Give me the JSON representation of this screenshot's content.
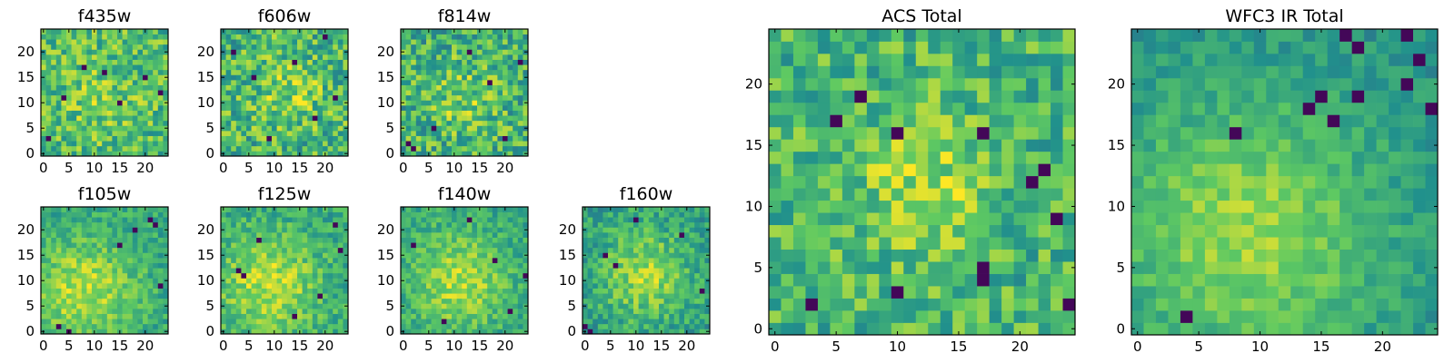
{
  "figure": {
    "colormap": "viridis",
    "colormap_stops": [
      "#440154",
      "#3b528b",
      "#21918c",
      "#5ec962",
      "#fde725"
    ]
  },
  "chart_data": [
    {
      "type": "heatmap",
      "title": "f435w",
      "grid_size": 25,
      "xlim": [
        -0.5,
        24.5
      ],
      "ylim": [
        -0.5,
        24.5
      ],
      "x_ticks": [
        0,
        5,
        10,
        15,
        20
      ],
      "y_ticks": [
        0,
        5,
        10,
        15,
        20
      ],
      "seed": 11,
      "center": [
        11,
        11
      ],
      "peak": 0.1,
      "sigma": 6,
      "base": 0.68,
      "noise": 0.22,
      "dark_cells": [
        [
          8,
          17
        ],
        [
          12,
          16
        ],
        [
          4,
          11
        ],
        [
          15,
          10
        ],
        [
          20,
          15
        ],
        [
          1,
          3
        ],
        [
          23,
          12
        ]
      ]
    },
    {
      "type": "heatmap",
      "title": "f606w",
      "grid_size": 25,
      "xlim": [
        -0.5,
        24.5
      ],
      "ylim": [
        -0.5,
        24.5
      ],
      "x_ticks": [
        0,
        5,
        10,
        15,
        20
      ],
      "y_ticks": [
        0,
        5,
        10,
        15,
        20
      ],
      "seed": 12,
      "center": [
        13,
        12
      ],
      "peak": 0.15,
      "sigma": 5,
      "base": 0.66,
      "noise": 0.24,
      "dark_cells": [
        [
          2,
          20
        ],
        [
          20,
          23
        ],
        [
          6,
          15
        ],
        [
          18,
          7
        ],
        [
          9,
          3
        ],
        [
          14,
          18
        ],
        [
          22,
          11
        ]
      ]
    },
    {
      "type": "heatmap",
      "title": "f814w",
      "grid_size": 25,
      "xlim": [
        -0.5,
        24.5
      ],
      "ylim": [
        -0.5,
        24.5
      ],
      "x_ticks": [
        0,
        5,
        10,
        15,
        20
      ],
      "y_ticks": [
        0,
        5,
        10,
        15,
        20
      ],
      "seed": 13,
      "center": [
        12,
        11
      ],
      "peak": 0.15,
      "sigma": 5,
      "base": 0.64,
      "noise": 0.24,
      "dark_cells": [
        [
          1,
          2
        ],
        [
          2,
          1
        ],
        [
          6,
          5
        ],
        [
          13,
          20
        ],
        [
          20,
          3
        ],
        [
          17,
          14
        ],
        [
          23,
          18
        ]
      ]
    },
    {
      "type": "heatmap",
      "title": "f105w",
      "grid_size": 25,
      "xlim": [
        -0.5,
        24.5
      ],
      "ylim": [
        -0.5,
        24.5
      ],
      "x_ticks": [
        0,
        5,
        10,
        15,
        20
      ],
      "y_ticks": [
        0,
        5,
        10,
        15,
        20
      ],
      "seed": 21,
      "center": [
        8,
        8
      ],
      "peak": 0.3,
      "sigma": 7,
      "base": 0.6,
      "noise": 0.14,
      "dark_cells": [
        [
          21,
          22
        ],
        [
          22,
          21
        ],
        [
          18,
          20
        ],
        [
          3,
          1
        ],
        [
          5,
          0
        ],
        [
          23,
          9
        ],
        [
          15,
          17
        ]
      ]
    },
    {
      "type": "heatmap",
      "title": "f125w",
      "grid_size": 25,
      "xlim": [
        -0.5,
        24.5
      ],
      "ylim": [
        -0.5,
        24.5
      ],
      "x_ticks": [
        0,
        5,
        10,
        15,
        20
      ],
      "y_ticks": [
        0,
        5,
        10,
        15,
        20
      ],
      "seed": 22,
      "center": [
        9,
        9
      ],
      "peak": 0.3,
      "sigma": 7,
      "base": 0.6,
      "noise": 0.15,
      "dark_cells": [
        [
          3,
          12
        ],
        [
          4,
          11
        ],
        [
          22,
          21
        ],
        [
          19,
          7
        ],
        [
          14,
          3
        ],
        [
          7,
          18
        ],
        [
          23,
          16
        ]
      ]
    },
    {
      "type": "heatmap",
      "title": "f140w",
      "grid_size": 25,
      "xlim": [
        -0.5,
        24.5
      ],
      "ylim": [
        -0.5,
        24.5
      ],
      "x_ticks": [
        0,
        5,
        10,
        15,
        20
      ],
      "y_ticks": [
        0,
        5,
        10,
        15,
        20
      ],
      "seed": 23,
      "center": [
        11,
        10
      ],
      "peak": 0.3,
      "sigma": 7,
      "base": 0.58,
      "noise": 0.14,
      "dark_cells": [
        [
          13,
          22
        ],
        [
          18,
          14
        ],
        [
          21,
          4
        ],
        [
          2,
          17
        ],
        [
          8,
          2
        ],
        [
          24,
          11
        ]
      ]
    },
    {
      "type": "heatmap",
      "title": "f160w",
      "grid_size": 25,
      "xlim": [
        -0.5,
        24.5
      ],
      "ylim": [
        -0.5,
        24.5
      ],
      "x_ticks": [
        0,
        5,
        10,
        15,
        20
      ],
      "y_ticks": [
        0,
        5,
        10,
        15,
        20
      ],
      "seed": 24,
      "center": [
        12,
        11
      ],
      "peak": 0.3,
      "sigma": 6,
      "base": 0.56,
      "noise": 0.16,
      "dark_cells": [
        [
          4,
          15
        ],
        [
          6,
          13
        ],
        [
          0,
          1
        ],
        [
          1,
          0
        ],
        [
          23,
          8
        ],
        [
          19,
          19
        ],
        [
          10,
          22
        ]
      ]
    },
    {
      "type": "heatmap",
      "title": "ACS Total",
      "grid_size": 25,
      "xlim": [
        -0.5,
        24.5
      ],
      "ylim": [
        -0.5,
        24.5
      ],
      "x_ticks": [
        0,
        5,
        10,
        15,
        20
      ],
      "y_ticks": [
        0,
        5,
        10,
        15,
        20
      ],
      "seed": 31,
      "center": [
        12,
        12
      ],
      "peak": 0.2,
      "sigma": 4,
      "base": 0.66,
      "noise": 0.2,
      "dark_cells": [
        [
          7,
          19
        ],
        [
          5,
          17
        ],
        [
          10,
          16
        ],
        [
          17,
          16
        ],
        [
          22,
          13
        ],
        [
          21,
          12
        ],
        [
          23,
          9
        ],
        [
          17,
          5
        ],
        [
          17,
          4
        ],
        [
          10,
          3
        ],
        [
          24,
          2
        ],
        [
          3,
          2
        ]
      ]
    },
    {
      "type": "heatmap",
      "title": "WFC3 IR Total",
      "grid_size": 25,
      "xlim": [
        -0.5,
        24.5
      ],
      "ylim": [
        -0.5,
        24.5
      ],
      "x_ticks": [
        0,
        5,
        10,
        15,
        20
      ],
      "y_ticks": [
        0,
        5,
        10,
        15,
        20
      ],
      "seed": 41,
      "center": [
        9,
        8
      ],
      "peak": 0.34,
      "sigma": 8,
      "base": 0.5,
      "noise": 0.1,
      "dark_cells": [
        [
          17,
          24
        ],
        [
          18,
          23
        ],
        [
          22,
          24
        ],
        [
          23,
          22
        ],
        [
          18,
          19
        ],
        [
          22,
          20
        ],
        [
          24,
          18
        ],
        [
          14,
          18
        ],
        [
          15,
          19
        ],
        [
          8,
          16
        ],
        [
          16,
          17
        ],
        [
          4,
          1
        ]
      ]
    }
  ]
}
